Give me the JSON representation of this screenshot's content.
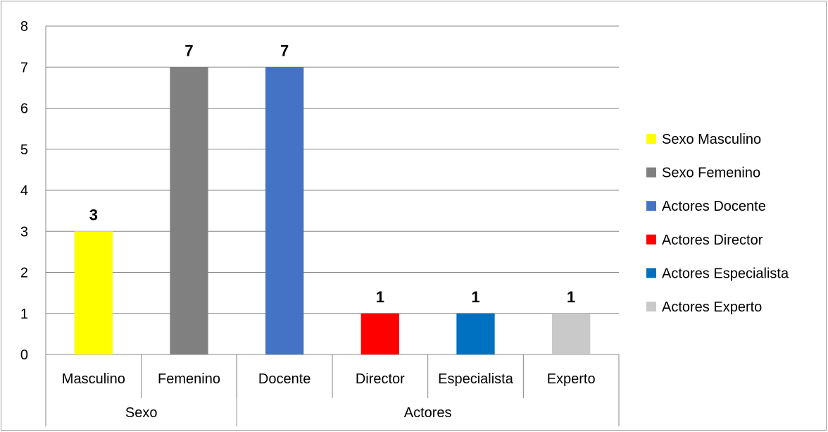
{
  "chart_data": {
    "type": "bar",
    "title": "",
    "xlabel": "",
    "ylabel": "",
    "ylim": [
      0,
      8
    ],
    "yticks": [
      0,
      1,
      2,
      3,
      4,
      5,
      6,
      7,
      8
    ],
    "grid": true,
    "legend_position": "right",
    "groups": [
      {
        "label": "Sexo",
        "categories": [
          "Masculino",
          "Femenino"
        ]
      },
      {
        "label": "Actores",
        "categories": [
          "Docente",
          "Director",
          "Especialista",
          "Experto"
        ]
      }
    ],
    "bars": [
      {
        "category": "Masculino",
        "value": 3,
        "label": "3",
        "color": "#ffff00"
      },
      {
        "category": "Femenino",
        "value": 7,
        "label": "7",
        "color": "#808080"
      },
      {
        "category": "Docente",
        "value": 7,
        "label": "7",
        "color": "#4472c4"
      },
      {
        "category": "Director",
        "value": 1,
        "label": "1",
        "color": "#ff0000"
      },
      {
        "category": "Especialista",
        "value": 1,
        "label": "1",
        "color": "#0070c0"
      },
      {
        "category": "Experto",
        "value": 1,
        "label": "1",
        "color": "#c9c9c9"
      }
    ],
    "legend": [
      {
        "name": "Sexo Masculino",
        "color": "#ffff00"
      },
      {
        "name": "Sexo Femenino",
        "color": "#808080"
      },
      {
        "name": "Actores Docente",
        "color": "#4472c4"
      },
      {
        "name": "Actores Director",
        "color": "#ff0000"
      },
      {
        "name": "Actores Especialista",
        "color": "#0070c0"
      },
      {
        "name": "Actores Experto",
        "color": "#c9c9c9"
      }
    ]
  }
}
